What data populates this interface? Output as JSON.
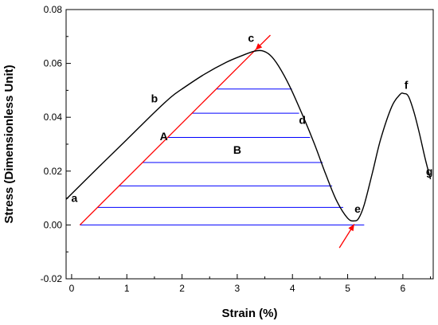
{
  "chart_data": {
    "type": "line",
    "xlabel": "Strain (%)",
    "ylabel": "Stress (Dimensionless Unit)",
    "xlim": [
      -0.1,
      6.55
    ],
    "ylim": [
      -0.02,
      0.08
    ],
    "xticks": [
      0,
      1,
      2,
      3,
      4,
      5,
      6
    ],
    "yticks": [
      -0.02,
      0.0,
      0.02,
      0.04,
      0.06,
      0.08
    ],
    "ytick_labels": [
      "-0.02",
      "0.00",
      "0.02",
      "0.04",
      "0.06",
      "0.08"
    ],
    "curve_color": "#000000",
    "tangent_color": "#ff0000",
    "hatch_color": "#0000ff",
    "curve": {
      "x": [
        -0.1,
        0.5,
        1.0,
        1.5,
        1.8,
        2.0,
        2.4,
        2.8,
        3.1,
        3.3,
        3.45,
        3.6,
        3.75,
        3.95,
        4.2,
        4.4,
        4.6,
        4.8,
        5.0,
        5.12,
        5.2,
        5.3,
        5.45,
        5.6,
        5.8,
        5.95,
        6.02,
        6.1,
        6.2,
        6.3,
        6.4,
        6.5
      ],
      "y": [
        0.0095,
        0.0217,
        0.0317,
        0.0418,
        0.0475,
        0.0505,
        0.0559,
        0.0604,
        0.063,
        0.0645,
        0.0647,
        0.063,
        0.059,
        0.0515,
        0.04,
        0.03,
        0.019,
        0.009,
        0.0025,
        0.0015,
        0.0025,
        0.0075,
        0.0195,
        0.032,
        0.044,
        0.0485,
        0.0488,
        0.0478,
        0.042,
        0.034,
        0.025,
        0.017
      ]
    },
    "tangent_line": {
      "x": [
        0.15,
        3.33
      ],
      "y": [
        0.0,
        0.065
      ]
    },
    "hatch_lines": [
      {
        "y": 0.0,
        "x1": 0.15,
        "x2": 5.3
      },
      {
        "y": 0.0065,
        "x1": 0.47,
        "x2": 4.92
      },
      {
        "y": 0.0145,
        "x1": 0.86,
        "x2": 4.72
      },
      {
        "y": 0.0232,
        "x1": 1.28,
        "x2": 4.55
      },
      {
        "y": 0.0325,
        "x1": 1.74,
        "x2": 4.32
      },
      {
        "y": 0.0415,
        "x1": 2.18,
        "x2": 4.12
      },
      {
        "y": 0.0505,
        "x1": 2.63,
        "x2": 3.99
      }
    ],
    "arrows": [
      {
        "name": "arrow-c",
        "tip": [
          3.33,
          0.065
        ],
        "tail": [
          3.6,
          0.0705
        ]
      },
      {
        "name": "arrow-e",
        "tip": [
          5.12,
          0.0003
        ],
        "tail": [
          4.85,
          -0.0085
        ]
      }
    ],
    "point_labels": [
      {
        "text": "a",
        "x": 0.05,
        "y": 0.0085
      },
      {
        "text": "b",
        "x": 1.5,
        "y": 0.0455
      },
      {
        "text": "c",
        "x": 3.25,
        "y": 0.068
      },
      {
        "text": "d",
        "x": 4.18,
        "y": 0.0375
      },
      {
        "text": "e",
        "x": 5.18,
        "y": 0.0045
      },
      {
        "text": "f",
        "x": 6.06,
        "y": 0.0505
      },
      {
        "text": "g",
        "x": 6.48,
        "y": 0.0185
      },
      {
        "text": "A",
        "x": 1.67,
        "y": 0.0315
      },
      {
        "text": "B",
        "x": 3.0,
        "y": 0.0265
      }
    ]
  }
}
